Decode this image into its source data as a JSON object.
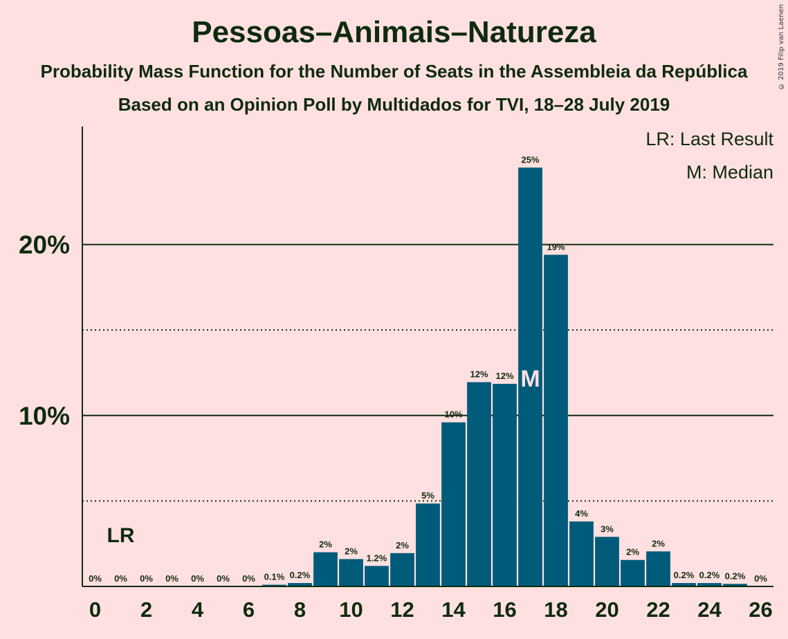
{
  "chart_data": {
    "type": "bar",
    "title": "Pessoas–Animais–Natureza",
    "subtitle": "Probability Mass Function for the Number of Seats in the Assembleia da República",
    "subtitle2": "Based on an Opinion Poll by Multidados for TVI, 18–28 July 2019",
    "copyright": "© 2019 Filip van Laenen",
    "legend": {
      "lr": "LR: Last Result",
      "m": "M: Median",
      "placement": "top-right"
    },
    "x": [
      0,
      1,
      2,
      3,
      4,
      5,
      6,
      7,
      8,
      9,
      10,
      11,
      12,
      13,
      14,
      15,
      16,
      17,
      18,
      19,
      20,
      21,
      22,
      23,
      24,
      25,
      26
    ],
    "values": [
      0,
      0,
      0,
      0,
      0,
      0,
      0,
      0.1,
      0.2,
      2.0,
      1.6,
      1.2,
      1.95,
      4.85,
      9.6,
      11.95,
      11.85,
      24.5,
      19.4,
      3.8,
      2.9,
      1.55,
      2.05,
      0.2,
      0.2,
      0.15,
      0
    ],
    "labels": [
      "0%",
      "0%",
      "0%",
      "0%",
      "0%",
      "0%",
      "0%",
      "0.1%",
      "0.2%",
      "2%",
      "2%",
      "1.2%",
      "2%",
      "5%",
      "10%",
      "12%",
      "12%",
      "25%",
      "19%",
      "4%",
      "3%",
      "2%",
      "2%",
      "0.2%",
      "0.2%",
      "0.2%",
      "0%"
    ],
    "xticks": [
      0,
      2,
      4,
      6,
      8,
      10,
      12,
      14,
      16,
      18,
      20,
      22,
      24,
      26
    ],
    "yticks": [
      {
        "value": 10,
        "label": "10%"
      },
      {
        "value": 20,
        "label": "20%"
      }
    ],
    "dotted_lines": [
      5,
      15
    ],
    "ylim": [
      0,
      26.9
    ],
    "xlim": [
      -0.5,
      26.5
    ],
    "last_result_seat": 1,
    "last_result_marker": "LR",
    "median_seat": 17,
    "median_marker": "M",
    "colors": {
      "bar": "#005b7a",
      "background": "#ffe0e0",
      "text": "#0f2a0f",
      "median_text": "#ffe0e0"
    }
  }
}
